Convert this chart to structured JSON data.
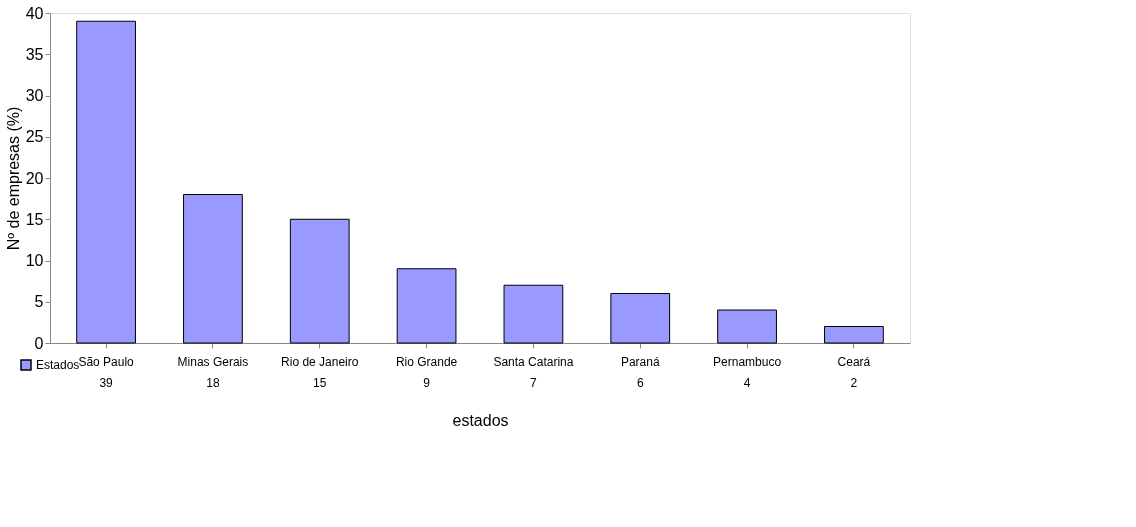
{
  "chart_data": {
    "type": "bar",
    "xlabel": "estados",
    "ylabel": "Nº de empresas (%)",
    "categories": [
      "São Paulo",
      "Minas Gerais",
      "Rio de Janeiro",
      "Rio Grande",
      "Santa Catarina",
      "Paraná",
      "Pernambuco",
      "Ceará"
    ],
    "series": [
      {
        "name": "Estados",
        "color": "#9999ff",
        "values": [
          39,
          18,
          15,
          9,
          7,
          6,
          4,
          2
        ]
      }
    ],
    "ylim": [
      0,
      40
    ],
    "yticks": [
      0,
      5,
      10,
      15,
      20,
      25,
      30,
      35,
      40
    ],
    "grid": false,
    "legend": "bottom left",
    "data_labels": true
  }
}
